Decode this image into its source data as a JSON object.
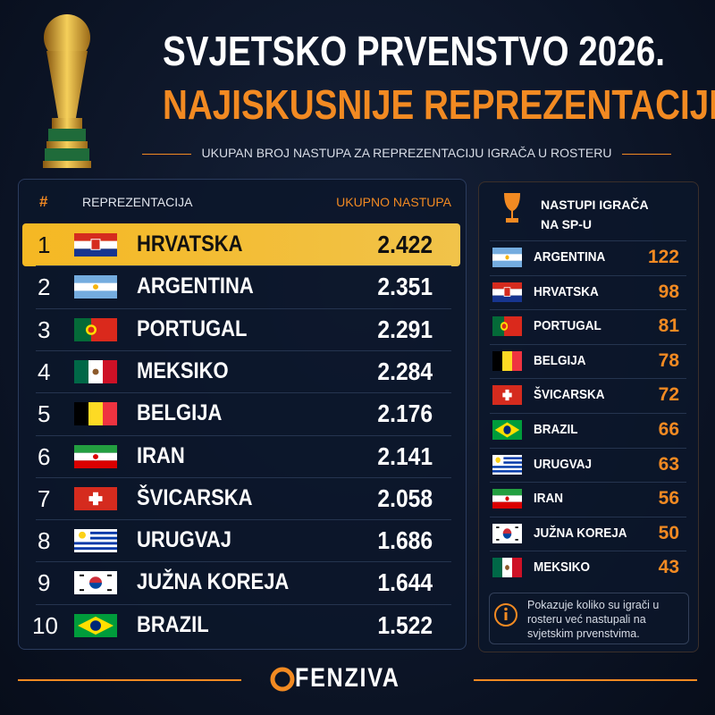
{
  "header": {
    "title": "SVJETSKO PRVENSTVO 2026.",
    "subtitle": "NAJISKUSNIJE REPREZENTACIJE",
    "description": "UKUPAN BROJ NASTUPA ZA REPREZENTACIJU IGRAČA U ROSTERU"
  },
  "main_table": {
    "columns": [
      "#",
      "REPREZENTACIJA",
      "UKUPNO NASTUPA"
    ],
    "rows": [
      [
        "1",
        "HRVATSKA",
        "2.422"
      ],
      [
        "2",
        "ARGENTINA",
        "2.351"
      ],
      [
        "3",
        "PORTUGAL",
        "2.291"
      ],
      [
        "4",
        "MEKSIKO",
        "2.284"
      ],
      [
        "5",
        "BELGIJA",
        "2.176"
      ],
      [
        "6",
        "IRAN",
        "2.141"
      ],
      [
        "7",
        "ŠVICARSKA",
        "2.058"
      ],
      [
        "8",
        "URUGVAJ",
        "1.686"
      ],
      [
        "9",
        "JUŽNA KOREJA",
        "1.644"
      ],
      [
        "10",
        "BRAZIL",
        "1.522"
      ]
    ]
  },
  "side_table": {
    "title": "NASTUPI IGRAČA NA SP-U",
    "rows": [
      [
        "ARGENTINA",
        "122"
      ],
      [
        "HRVATSKA",
        "98"
      ],
      [
        "PORTUGAL",
        "81"
      ],
      [
        "BELGIJA",
        "78"
      ],
      [
        "ŠVICARSKA",
        "72"
      ],
      [
        "BRAZIL",
        "66"
      ],
      [
        "URUGVAJ",
        "63"
      ],
      [
        "IRAN",
        "56"
      ],
      [
        "JUŽNA KOREJA",
        "50"
      ],
      [
        "MEKSIKO",
        "43"
      ]
    ],
    "note": "Pokazuje koliko su igrači u rosteru već nastupali na svjetskim prvenstvima."
  },
  "footer": {
    "brand": "FENZIVA"
  }
}
